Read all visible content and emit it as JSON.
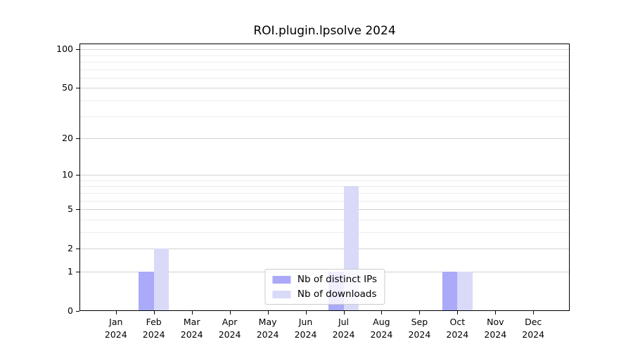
{
  "title": "ROI.plugin.lpsolve 2024",
  "colors": {
    "background": "#ffffff",
    "axis": "#000000",
    "text": "#000000",
    "grid_major": "#d2d2d2",
    "grid_minor": "#ececec",
    "distinct_ips": "#aaaaf8",
    "downloads": "#d9d9f8",
    "legend_border": "#cccccc"
  },
  "legend": {
    "items": [
      {
        "label": "Nb of distinct IPs",
        "color": "#aaaaf8"
      },
      {
        "label": "Nb of downloads",
        "color": "#d9d9f8"
      }
    ]
  },
  "chart_data": {
    "type": "bar",
    "title": "ROI.plugin.lpsolve 2024",
    "categories": [
      "Jan 2024",
      "Feb 2024",
      "Mar 2024",
      "Apr 2024",
      "May 2024",
      "Jun 2024",
      "Jul 2024",
      "Aug 2024",
      "Sep 2024",
      "Oct 2024",
      "Nov 2024",
      "Dec 2024"
    ],
    "series": [
      {
        "name": "Nb of distinct IPs",
        "color": "#aaaaf8",
        "values": [
          0,
          1,
          0,
          0,
          0,
          0,
          1,
          0,
          0,
          1,
          0,
          0
        ]
      },
      {
        "name": "Nb of downloads",
        "color": "#d9d9f8",
        "values": [
          0,
          2,
          0,
          0,
          0,
          0,
          8,
          0,
          0,
          1,
          0,
          0
        ]
      }
    ],
    "yscale": "log1p",
    "ylim": [
      0,
      110.6
    ],
    "yticks": [
      0,
      1,
      2,
      5,
      10,
      20,
      50,
      100
    ],
    "yticks_minor": [
      3,
      4,
      6,
      7,
      8,
      9,
      30,
      40,
      60,
      70,
      80,
      90
    ],
    "grid": true,
    "legend_position": "lower center"
  }
}
